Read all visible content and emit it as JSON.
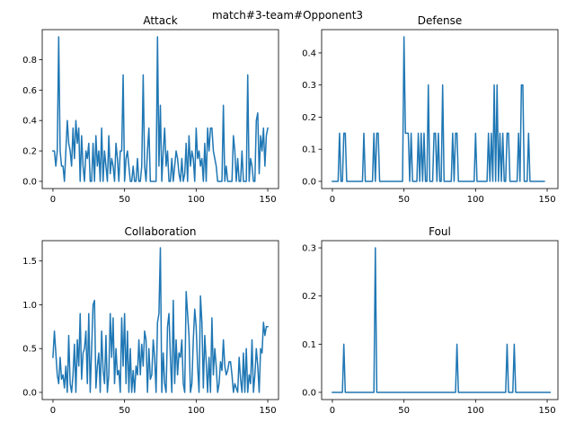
{
  "suptitle": "match#3-team#Opponent3",
  "colors": {
    "series": "#1f77b4"
  },
  "chart_data": [
    {
      "type": "line",
      "title": "Attack",
      "xlim": [
        -7.5,
        157.5
      ],
      "ylim": [
        -0.0475,
        0.9975
      ],
      "xticks": [
        0,
        50,
        100,
        150
      ],
      "yticks": [
        0.0,
        0.2,
        0.4,
        0.6,
        0.8
      ],
      "ytick_labels": [
        "0.0",
        "0.2",
        "0.4",
        "0.6",
        "0.8"
      ],
      "values": [
        0.2,
        0.2,
        0.1,
        0.2,
        0.95,
        0.2,
        0.1,
        0.1,
        0.0,
        0.2,
        0.4,
        0.25,
        0.2,
        0.1,
        0.35,
        0.15,
        0.4,
        0.25,
        0.35,
        0.0,
        0.3,
        0.1,
        0.0,
        0.2,
        0.15,
        0.25,
        0.0,
        0.0,
        0.25,
        0.0,
        0.3,
        0.1,
        0.2,
        0.0,
        0.35,
        0.0,
        0.2,
        0.1,
        0.0,
        0.3,
        0.05,
        0.15,
        0.1,
        0.0,
        0.25,
        0.15,
        0.0,
        0.2,
        0.2,
        0.7,
        0.0,
        0.15,
        0.2,
        0.1,
        0.0,
        0.0,
        0.1,
        0.0,
        0.0,
        0.15,
        0.0,
        0.0,
        0.1,
        0.7,
        0.1,
        0.0,
        0.2,
        0.35,
        0.0,
        0.0,
        0.0,
        0.0,
        0.0,
        0.95,
        0.1,
        0.5,
        0.0,
        0.2,
        0.35,
        0.1,
        0.2,
        0.0,
        0.0,
        0.15,
        0.0,
        0.1,
        0.2,
        0.15,
        0.05,
        0.0,
        0.15,
        0.0,
        0.05,
        0.25,
        0.0,
        0.3,
        0.1,
        0.2,
        0.15,
        0.0,
        0.35,
        0.15,
        0.2,
        0.1,
        0.15,
        0.0,
        0.25,
        0.0,
        0.35,
        0.2,
        0.35,
        0.35,
        0.2,
        0.15,
        0.1,
        0.0,
        0.0,
        0.0,
        0.0,
        0.5,
        0.0,
        0.1,
        0.0,
        0.0,
        0.0,
        0.0,
        0.3,
        0.2,
        0.0,
        0.15,
        0.0,
        0.0,
        0.2,
        0.0,
        0.0,
        0.0,
        0.7,
        0.0,
        0.15,
        0.1,
        0.0,
        0.0,
        0.4,
        0.45,
        0.05,
        0.3,
        0.2,
        0.35,
        0.1,
        0.3,
        0.35
      ]
    },
    {
      "type": "line",
      "title": "Defense",
      "xlim": [
        -7.5,
        157.5
      ],
      "ylim": [
        -0.0225,
        0.4725
      ],
      "xticks": [
        0,
        50,
        100,
        150
      ],
      "yticks": [
        0.0,
        0.1,
        0.2,
        0.3,
        0.4
      ],
      "ytick_labels": [
        "0.0",
        "0.1",
        "0.2",
        "0.3",
        "0.4"
      ],
      "values": [
        0,
        0,
        0,
        0,
        0,
        0.15,
        0,
        0,
        0.15,
        0.15,
        0,
        0,
        0,
        0,
        0,
        0,
        0,
        0,
        0,
        0,
        0,
        0,
        0.15,
        0,
        0,
        0,
        0,
        0,
        0,
        0.15,
        0,
        0.15,
        0.15,
        0,
        0,
        0,
        0,
        0,
        0,
        0,
        0,
        0,
        0,
        0,
        0,
        0,
        0,
        0,
        0,
        0,
        0.45,
        0.15,
        0.15,
        0.15,
        0,
        0.15,
        0,
        0,
        0,
        0,
        0.15,
        0,
        0.15,
        0,
        0.15,
        0,
        0,
        0.3,
        0,
        0,
        0,
        0.15,
        0.15,
        0,
        0.15,
        0,
        0,
        0.3,
        0,
        0,
        0,
        0,
        0,
        0,
        0.15,
        0,
        0.15,
        0.15,
        0,
        0,
        0,
        0,
        0,
        0,
        0,
        0,
        0,
        0,
        0,
        0,
        0.15,
        0,
        0,
        0,
        0,
        0,
        0,
        0,
        0,
        0.15,
        0,
        0.15,
        0,
        0.3,
        0,
        0.3,
        0,
        0.15,
        0,
        0.15,
        0,
        0,
        0.15,
        0.15,
        0,
        0,
        0,
        0,
        0,
        0,
        0.15,
        0,
        0.3,
        0.3,
        0,
        0,
        0,
        0.15,
        0,
        0,
        0,
        0,
        0,
        0,
        0,
        0,
        0,
        0,
        0
      ]
    },
    {
      "type": "line",
      "title": "Collaboration",
      "xlim": [
        -7.5,
        157.5
      ],
      "ylim": [
        -0.0825,
        1.7325
      ],
      "xticks": [
        0,
        50,
        100,
        150
      ],
      "yticks": [
        0.0,
        0.5,
        1.0,
        1.5
      ],
      "ytick_labels": [
        "0.0",
        "0.5",
        "1.0",
        "1.5"
      ],
      "values": [
        0.4,
        0.7,
        0.45,
        0.2,
        0.1,
        0.4,
        0.15,
        0.2,
        0.05,
        0.3,
        0.0,
        0.65,
        0.1,
        0.0,
        0.2,
        0.55,
        0.0,
        0.6,
        0.3,
        0.9,
        0.15,
        0.45,
        0.5,
        0.7,
        0.1,
        0.9,
        0.0,
        0.5,
        1.0,
        1.05,
        0.05,
        0.3,
        0.45,
        0.0,
        0.7,
        0.25,
        0.1,
        0.65,
        0.0,
        0.2,
        0.9,
        0.4,
        0.85,
        0.1,
        0.5,
        0.2,
        0.25,
        0.0,
        0.85,
        0.3,
        0.9,
        0.1,
        0.7,
        0.0,
        0.5,
        0.0,
        0.25,
        0.0,
        0.3,
        0.2,
        0.6,
        0.2,
        0.55,
        0.3,
        0.7,
        0.6,
        0.0,
        0.5,
        0.15,
        0.2,
        0.6,
        0.4,
        0.0,
        0.8,
        0.9,
        1.65,
        0.0,
        0.45,
        0.1,
        0.0,
        0.75,
        0.9,
        0.4,
        0.0,
        1.05,
        0.1,
        0.6,
        0.2,
        0.45,
        0.4,
        0.6,
        0.1,
        0.0,
        1.15,
        0.9,
        0.65,
        0.0,
        0.1,
        0.6,
        0.95,
        0.75,
        0.3,
        0.0,
        1.1,
        0.8,
        0.05,
        0.65,
        0.35,
        0.0,
        0.4,
        0.0,
        0.85,
        0.2,
        0.5,
        0.3,
        0.0,
        0.1,
        0.35,
        0.25,
        0.6,
        0.3,
        0.2,
        0.25,
        0.35,
        0.35,
        0.2,
        0.0,
        0.1,
        0.05,
        0.0,
        0.4,
        0.15,
        0.0,
        0.45,
        0.0,
        0.5,
        0.0,
        0.2,
        0.1,
        0.6,
        0.0,
        0.2,
        0.5,
        0.3,
        0.0,
        0.5,
        0.45,
        0.8,
        0.65,
        0.75,
        0.75
      ]
    },
    {
      "type": "line",
      "title": "Foul",
      "xlim": [
        -7.5,
        157.5
      ],
      "ylim": [
        -0.015,
        0.315
      ],
      "xticks": [
        0,
        50,
        100,
        150
      ],
      "yticks": [
        0.0,
        0.1,
        0.2,
        0.3
      ],
      "ytick_labels": [
        "0.0",
        "0.1",
        "0.2",
        "0.3"
      ],
      "values": [
        0,
        0,
        0,
        0,
        0,
        0,
        0,
        0,
        0.1,
        0,
        0,
        0,
        0,
        0,
        0,
        0,
        0,
        0,
        0,
        0,
        0,
        0,
        0,
        0,
        0,
        0,
        0,
        0,
        0,
        0,
        0.3,
        0,
        0,
        0,
        0,
        0,
        0,
        0,
        0,
        0,
        0,
        0,
        0,
        0,
        0,
        0,
        0,
        0,
        0,
        0,
        0,
        0,
        0,
        0,
        0,
        0,
        0,
        0,
        0,
        0,
        0,
        0,
        0,
        0,
        0,
        0,
        0,
        0,
        0,
        0,
        0,
        0,
        0,
        0,
        0,
        0,
        0,
        0,
        0,
        0,
        0,
        0,
        0,
        0,
        0,
        0,
        0,
        0.1,
        0,
        0,
        0,
        0,
        0,
        0,
        0,
        0,
        0,
        0,
        0,
        0,
        0,
        0,
        0,
        0,
        0,
        0,
        0,
        0,
        0,
        0,
        0,
        0,
        0,
        0,
        0,
        0,
        0,
        0,
        0,
        0,
        0,
        0,
        0.1,
        0,
        0,
        0,
        0,
        0.1,
        0,
        0,
        0,
        0,
        0,
        0,
        0,
        0,
        0,
        0,
        0,
        0,
        0,
        0,
        0,
        0,
        0,
        0,
        0,
        0,
        0,
        0,
        0,
        0,
        0
      ]
    }
  ]
}
